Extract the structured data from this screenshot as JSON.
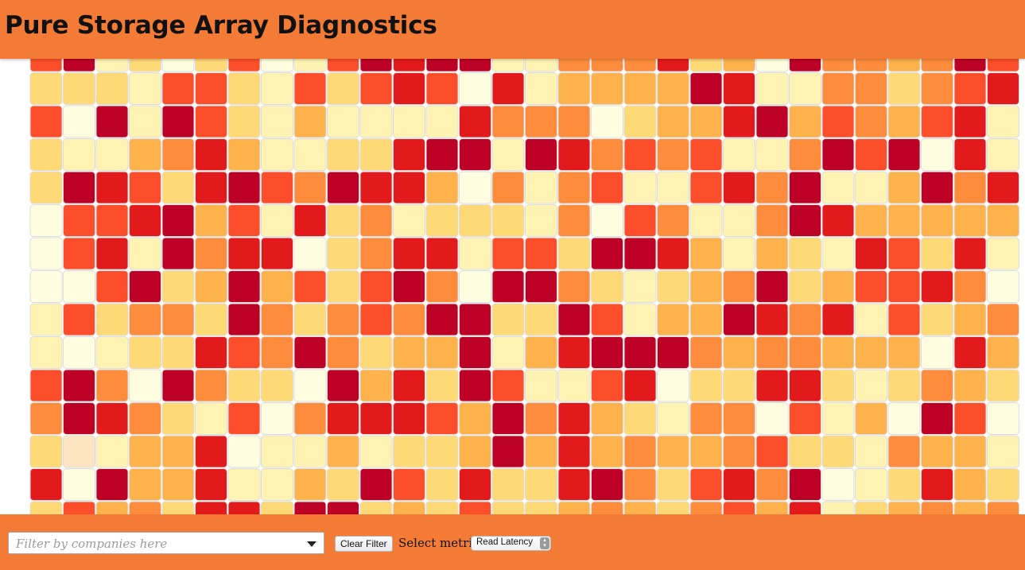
{
  "header": {
    "title": "Pure Storage Array Diagnostics"
  },
  "colors": {
    "header_bg": "#f47b35",
    "footer_bg": "#f47b35",
    "cell_border": "#dcdcdc",
    "palette": [
      "#fffde0",
      "#fff3b3",
      "#fed976",
      "#feb24c",
      "#fd8d3c",
      "#fc4e2a",
      "#e31a1c",
      "#bd0026"
    ],
    "highlight_cell": "#fde4c0"
  },
  "heatmap": {
    "rows": 15,
    "cols": 30,
    "note": "levels 0-7 index into colors.palette; 8 = highlight",
    "cells": [
      [
        5,
        7,
        1,
        2,
        0,
        2,
        5,
        0,
        1,
        5,
        7,
        6,
        7,
        7,
        1,
        1,
        4,
        4,
        4,
        6,
        2,
        3,
        0,
        7,
        4,
        4,
        3,
        4,
        7,
        5
      ],
      [
        2,
        2,
        2,
        1,
        5,
        5,
        2,
        1,
        5,
        2,
        5,
        6,
        5,
        0,
        6,
        1,
        3,
        3,
        3,
        3,
        7,
        6,
        1,
        1,
        4,
        4,
        2,
        4,
        5,
        6
      ],
      [
        5,
        0,
        7,
        1,
        7,
        5,
        2,
        1,
        3,
        1,
        1,
        1,
        1,
        6,
        4,
        4,
        4,
        0,
        2,
        3,
        3,
        6,
        7,
        3,
        5,
        4,
        3,
        5,
        6,
        1
      ],
      [
        2,
        1,
        1,
        3,
        4,
        6,
        3,
        1,
        1,
        2,
        2,
        6,
        7,
        7,
        1,
        7,
        6,
        4,
        5,
        4,
        5,
        1,
        1,
        4,
        7,
        5,
        7,
        0,
        6,
        1
      ],
      [
        2,
        7,
        6,
        5,
        2,
        6,
        7,
        5,
        4,
        7,
        6,
        6,
        3,
        0,
        4,
        1,
        4,
        5,
        1,
        1,
        5,
        6,
        4,
        7,
        1,
        1,
        3,
        7,
        4,
        6
      ],
      [
        0,
        5,
        5,
        6,
        7,
        3,
        5,
        1,
        6,
        2,
        4,
        1,
        2,
        2,
        2,
        1,
        4,
        0,
        5,
        4,
        1,
        1,
        4,
        7,
        6,
        3,
        3,
        3,
        3,
        3
      ],
      [
        0,
        5,
        6,
        1,
        7,
        4,
        6,
        6,
        0,
        2,
        4,
        6,
        6,
        1,
        5,
        5,
        2,
        7,
        7,
        6,
        3,
        1,
        3,
        2,
        1,
        6,
        5,
        2,
        6,
        1
      ],
      [
        0,
        0,
        5,
        7,
        2,
        3,
        7,
        3,
        5,
        2,
        5,
        7,
        4,
        0,
        7,
        7,
        4,
        2,
        1,
        2,
        3,
        4,
        7,
        2,
        3,
        5,
        5,
        6,
        4,
        0
      ],
      [
        1,
        5,
        2,
        4,
        4,
        2,
        7,
        4,
        2,
        4,
        5,
        4,
        7,
        7,
        2,
        2,
        7,
        5,
        1,
        3,
        3,
        7,
        6,
        4,
        6,
        1,
        5,
        2,
        3,
        4
      ],
      [
        1,
        0,
        1,
        2,
        2,
        6,
        5,
        4,
        7,
        4,
        2,
        3,
        3,
        7,
        1,
        3,
        6,
        7,
        7,
        7,
        4,
        3,
        4,
        4,
        3,
        3,
        3,
        0,
        6,
        3
      ],
      [
        5,
        7,
        4,
        0,
        7,
        4,
        2,
        2,
        0,
        7,
        3,
        6,
        2,
        7,
        5,
        1,
        1,
        5,
        6,
        0,
        2,
        2,
        6,
        6,
        2,
        1,
        2,
        4,
        3,
        2
      ],
      [
        4,
        7,
        6,
        4,
        2,
        1,
        5,
        0,
        4,
        6,
        6,
        6,
        5,
        3,
        7,
        4,
        6,
        3,
        2,
        1,
        4,
        4,
        0,
        5,
        1,
        3,
        0,
        7,
        5,
        0
      ],
      [
        2,
        8,
        1,
        3,
        3,
        6,
        0,
        1,
        1,
        3,
        1,
        2,
        2,
        3,
        7,
        3,
        6,
        3,
        4,
        3,
        3,
        4,
        5,
        2,
        2,
        1,
        4,
        3,
        3,
        1
      ],
      [
        6,
        0,
        7,
        3,
        3,
        6,
        1,
        1,
        3,
        2,
        7,
        5,
        2,
        6,
        2,
        2,
        6,
        7,
        4,
        2,
        5,
        6,
        4,
        7,
        0,
        1,
        2,
        6,
        3,
        2
      ],
      [
        2,
        5,
        3,
        4,
        2,
        6,
        6,
        2,
        7,
        7,
        2,
        3,
        2,
        5,
        2,
        2,
        3,
        4,
        3,
        2,
        4,
        5,
        3,
        6,
        1,
        2,
        3,
        4,
        3,
        4
      ]
    ]
  },
  "footer": {
    "filter_placeholder": "Filter by companies here",
    "clear_button_label": "Clear Filter",
    "metric_label": "Select metric:",
    "metric_selected": "Read Latency",
    "dropdown_icon": "chevron-down-icon",
    "stepper_icon": "up-down-stepper-icon"
  }
}
